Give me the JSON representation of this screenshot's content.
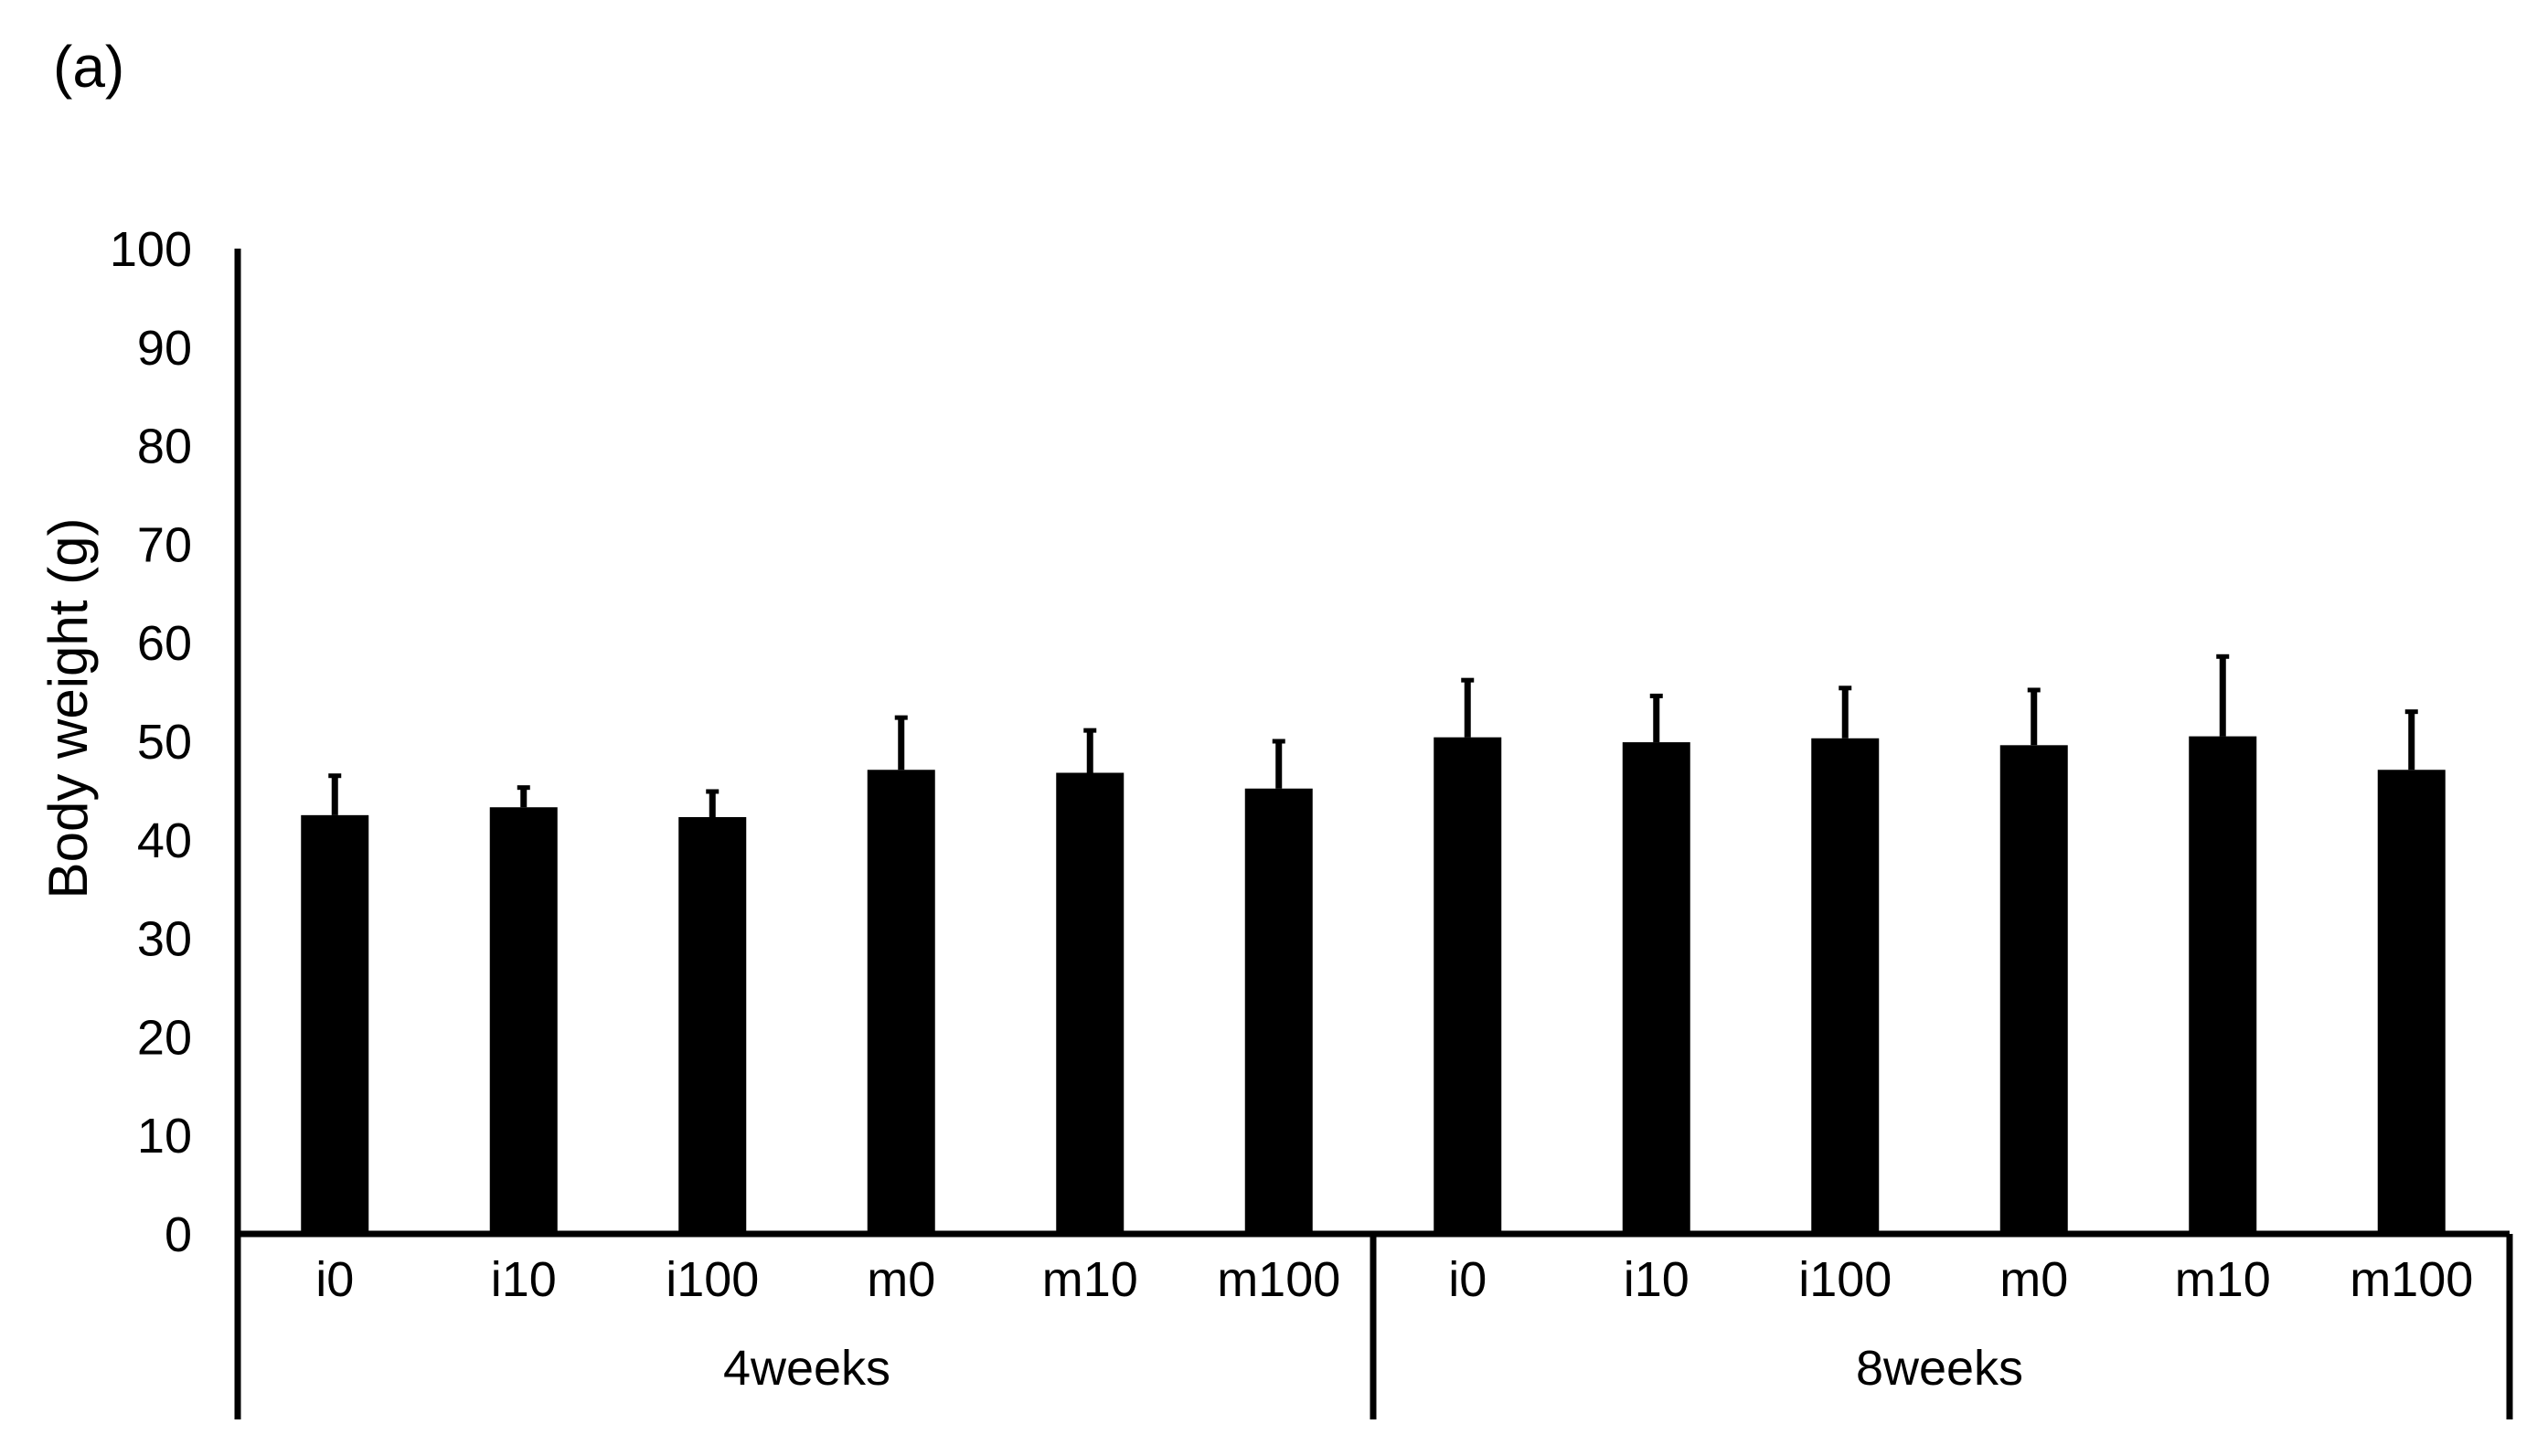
{
  "panel_label": "(a)",
  "chart_data": {
    "type": "bar",
    "ylabel": "Body weight (g)",
    "ylim": [
      0,
      100
    ],
    "yticks": [
      0,
      10,
      20,
      30,
      40,
      50,
      60,
      70,
      80,
      90,
      100
    ],
    "groups": [
      {
        "name": "4weeks",
        "categories": [
          "i0",
          "i10",
          "i100",
          "m0",
          "m10",
          "m100"
        ]
      },
      {
        "name": "8weeks",
        "categories": [
          "i0",
          "i10",
          "i100",
          "m0",
          "m10",
          "m100"
        ]
      }
    ],
    "series": [
      {
        "values": [
          42.5,
          43.3,
          42.3,
          47.1,
          46.8,
          45.2,
          50.4,
          49.9,
          50.3,
          49.6,
          50.5,
          47.1
        ],
        "error": [
          4.0,
          2.0,
          2.6,
          5.3,
          4.3,
          4.8,
          5.8,
          4.7,
          5.1,
          5.6,
          8.1,
          5.9
        ],
        "color": "#000000"
      }
    ],
    "grid": false,
    "legend": "none"
  }
}
